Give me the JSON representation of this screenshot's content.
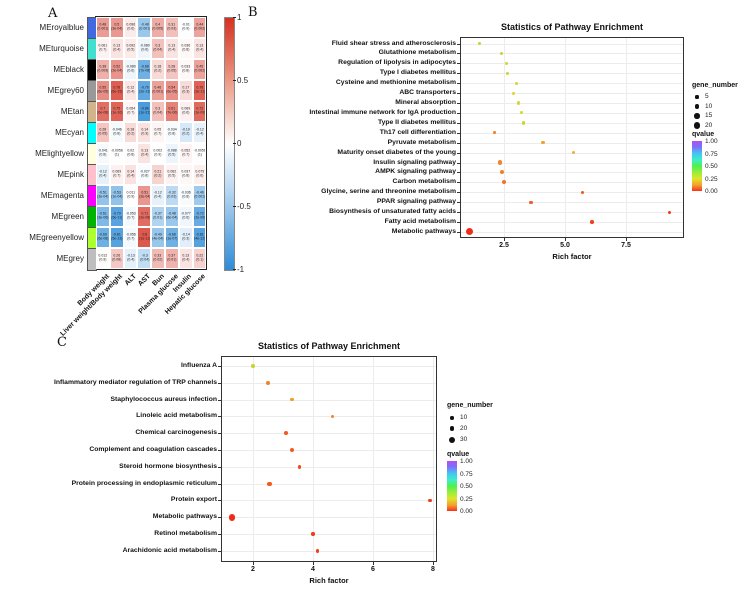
{
  "figure": {
    "panel_a_label": "A",
    "panel_b_label": "B",
    "panel_c_label": "C"
  },
  "chart_data": [
    {
      "id": "A",
      "type": "heatmap",
      "title": "",
      "value_range": [
        -1,
        1
      ],
      "columns": [
        "Body weight",
        "Liver weight/Body weight",
        "ALT",
        "AST",
        "Bun",
        "Plasma glucose",
        "Insulin",
        "Hepatic glucose"
      ],
      "colorbar_ticks": [
        "1",
        "0.5",
        "0",
        "-0.5",
        "-1"
      ],
      "colorbar_colors": {
        "top": "#d63020",
        "middle": "#ffffff",
        "bottom": "#2d8cd8"
      },
      "rows": [
        {
          "module": "MEroyalblue",
          "band_color": "#4169E1",
          "values": [
            "0.48",
            "0.5",
            "0.096",
            "-0.48",
            "0.4",
            "0.31",
            "-0.01",
            "0.44"
          ],
          "pvalues": [
            "(0.001)",
            "(3e-04)",
            "(0.6)",
            "(0.001)",
            "(0.005)",
            "(0.03)",
            "(0.9)",
            "(0.002)"
          ]
        },
        {
          "module": "MEturquoise",
          "band_color": "#40E0D0",
          "values": [
            "0.061",
            "0.13",
            "0.092",
            "-0.080",
            "0.3",
            "0.13",
            "0.036",
            "0.13"
          ],
          "pvalues": [
            "(0.7)",
            "(0.4)",
            "(0.5)",
            "(0.6)",
            "(0.04)",
            "(0.4)",
            "(0.8)",
            "(0.4)"
          ]
        },
        {
          "module": "MEblack",
          "band_color": "#000000",
          "values": [
            "0.38",
            "0.52",
            "-0.080",
            "-0.68",
            "0.18",
            "0.28",
            "0.033",
            "0.45"
          ],
          "pvalues": [
            "(0.009)",
            "(2e-04)",
            "(0.6)",
            "(7e-08)",
            "(0.2)",
            "(0.05)",
            "(0.8)",
            "(0.002)"
          ]
        },
        {
          "module": "MEgrey60",
          "band_color": "#999999",
          "values": [
            "0.55",
            "0.78",
            "0.12",
            "-0.76",
            "0.46",
            "0.54",
            "0.17",
            "0.76"
          ],
          "pvalues": [
            "(6e-05)",
            "(6e-15)",
            "(0.4)",
            "(2e-13)",
            "(0.001)",
            "(6e-05)",
            "(0.3)",
            "(3e-11)"
          ]
        },
        {
          "module": "MEtan",
          "band_color": "#D2B48C",
          "values": [
            "0.7",
            "0.75",
            "0.054",
            "-0.86",
            "0.3",
            "0.61",
            "0.069",
            "0.72"
          ],
          "pvalues": [
            "(6e-08)",
            "(1e-10)",
            "(0.7)",
            "(1e-21)",
            "(0.04)",
            "(7e-06)",
            "(0.6)",
            "(1e-09)"
          ]
        },
        {
          "module": "MEcyan",
          "band_color": "#00FFFF",
          "values": [
            "0.28",
            "-0.046",
            "0.18",
            "0.14",
            "0.05",
            "-0.034",
            "-0.19",
            "-0.12"
          ],
          "pvalues": [
            "(0.05)",
            "(0.8)",
            "(0.2)",
            "(0.3)",
            "(0.7)",
            "(0.8)",
            "(0.2)",
            "(0.4)"
          ]
        },
        {
          "module": "MElightyellow",
          "band_color": "#FFFFE0",
          "values": [
            "-0.041",
            "-0.0056",
            "0.02",
            "0.13",
            "0.002",
            "-0.088",
            "0.052",
            "-0.0056"
          ],
          "pvalues": [
            "(0.8)",
            "(1)",
            "(0.8)",
            "(0.4)",
            "(0.9)",
            "(0.5)",
            "(0.7)",
            "(1)"
          ]
        },
        {
          "module": "MEpink",
          "band_color": "#FFC0CB",
          "values": [
            "-0.12",
            "0.069",
            "0.14",
            "-0.027",
            "0.21",
            "0.062",
            "0.037",
            "0.075"
          ],
          "pvalues": [
            "(0.4)",
            "(0.7)",
            "(0.4)",
            "(0.8)",
            "(0.2)",
            "(0.5)",
            "(0.8)",
            "(0.6)"
          ]
        },
        {
          "module": "MEmagenta",
          "band_color": "#FF00FF",
          "values": [
            "-0.51",
            "-0.53",
            "0.011",
            "0.51",
            "-0.12",
            "-0.32",
            "-0.036",
            "-0.46"
          ],
          "pvalues": [
            "(3e-04)",
            "(1e-04)",
            "(0.9)",
            "(2e-04)",
            "(0.4)",
            "(0.03)",
            "(0.8)",
            "(0.001)"
          ]
        },
        {
          "module": "MEgreen",
          "band_color": "#00B400",
          "values": [
            "-0.61",
            "-0.79",
            "-0.053",
            "0.71",
            "-0.37",
            "-0.48",
            "-0.077",
            "-0.72"
          ],
          "pvalues": [
            "(3e-06)",
            "(6e-11)",
            "(0.7)",
            "(2e-08)",
            "(0.01)",
            "(6e-04)",
            "(0.6)",
            "(2e-09)"
          ]
        },
        {
          "module": "MEgreenyellow",
          "band_color": "#ADFF2F",
          "values": [
            "-0.69",
            "-0.81",
            "-0.056",
            "0.8",
            "-0.49",
            "-0.68",
            "-0.14",
            "-0.81"
          ],
          "pvalues": [
            "(6e-08)",
            "(5e-13)",
            "(0.7)",
            "(1e-11)",
            "(4e-04)",
            "(1e-07)",
            "(0.3)",
            "(4e-12)"
          ]
        },
        {
          "module": "MEgrey",
          "band_color": "#BEBEBE",
          "values": [
            "0.012",
            "0.26",
            "-0.13",
            "-0.3",
            "0.33",
            "0.37",
            "0.13",
            "0.22"
          ],
          "pvalues": [
            "(0.9)",
            "(0.08)",
            "(0.4)",
            "(0.04)",
            "(0.02)",
            "(0.01)",
            "(0.4)",
            "(0.1)"
          ]
        }
      ]
    },
    {
      "id": "B",
      "type": "scatter",
      "title": "Statistics of Pathway Enrichment",
      "xlabel": "Rich factor",
      "xlim": [
        0.7,
        9.9
      ],
      "xticks": [
        2.5,
        5.0,
        7.5
      ],
      "xtick_labels": [
        "2.5",
        "5.0",
        "7.5"
      ],
      "grid": true,
      "legend": {
        "size_title": "gene_number",
        "sizes": [
          5,
          10,
          15,
          20
        ],
        "size_labels": [
          "5",
          "10",
          "15",
          "20"
        ],
        "color_title": "qvalue",
        "color_tick_labels": [
          "1.00",
          "0.75",
          "0.50",
          "0.25",
          "0.00"
        ]
      },
      "points": [
        {
          "pathway": "Fluid shear stress and atherosclerosis",
          "rich_factor": 1.5,
          "gene_number": 5,
          "qvalue_color": "#c3d531"
        },
        {
          "pathway": "Glutathione metabolism",
          "rich_factor": 2.4,
          "gene_number": 5,
          "qvalue_color": "#ccd632"
        },
        {
          "pathway": "Regulation of lipolysis in adipocytes",
          "rich_factor": 2.6,
          "gene_number": 6,
          "qvalue_color": "#d2d631"
        },
        {
          "pathway": "Type I diabetes mellitus",
          "rich_factor": 2.65,
          "gene_number": 6,
          "qvalue_color": "#ccd632"
        },
        {
          "pathway": "Cysteine and methionine metabolism",
          "rich_factor": 3.0,
          "gene_number": 5,
          "qvalue_color": "#d8d434"
        },
        {
          "pathway": "ABC transporters",
          "rich_factor": 2.9,
          "gene_number": 5,
          "qvalue_color": "#dcd337"
        },
        {
          "pathway": "Mineral absorption",
          "rich_factor": 3.1,
          "gene_number": 5,
          "qvalue_color": "#dcd337"
        },
        {
          "pathway": "Intestinal immune network for IgA production",
          "rich_factor": 3.2,
          "gene_number": 5,
          "qvalue_color": "#d8d434"
        },
        {
          "pathway": "Type II diabetes mellitus",
          "rich_factor": 3.3,
          "gene_number": 6,
          "qvalue_color": "#c8d531"
        },
        {
          "pathway": "Th17 cell differentiation",
          "rich_factor": 2.1,
          "gene_number": 5,
          "qvalue_color": "#f07f28"
        },
        {
          "pathway": "Pyruvate metabolism",
          "rich_factor": 4.1,
          "gene_number": 5,
          "qvalue_color": "#eda42d"
        },
        {
          "pathway": "Maturity onset diabetes of the young",
          "rich_factor": 5.35,
          "gene_number": 5,
          "qvalue_color": "#e8b330"
        },
        {
          "pathway": "Insulin signaling pathway",
          "rich_factor": 2.35,
          "gene_number": 9,
          "qvalue_color": "#f0862a"
        },
        {
          "pathway": "AMPK signaling pathway",
          "rich_factor": 2.4,
          "gene_number": 8,
          "qvalue_color": "#f07f28"
        },
        {
          "pathway": "Carbon metabolism",
          "rich_factor": 2.5,
          "gene_number": 8,
          "qvalue_color": "#f0742a"
        },
        {
          "pathway": "Glycine, serine and threonine metabolism",
          "rich_factor": 5.7,
          "gene_number": 5,
          "qvalue_color": "#f2571f"
        },
        {
          "pathway": "PPAR signaling pathway",
          "rich_factor": 3.6,
          "gene_number": 6,
          "qvalue_color": "#f25a20"
        },
        {
          "pathway": "Biosynthesis of unsaturated fatty acids",
          "rich_factor": 9.3,
          "gene_number": 5,
          "qvalue_color": "#f03c1c"
        },
        {
          "pathway": "Fatty acid metabolism",
          "rich_factor": 6.1,
          "gene_number": 6,
          "qvalue_color": "#f23f1d"
        },
        {
          "pathway": "Metabolic pathways",
          "rich_factor": 1.1,
          "gene_number": 25,
          "qvalue_color": "#ee2d17"
        }
      ]
    },
    {
      "id": "C",
      "type": "scatter",
      "title": "Statistics of Pathway Enrichment",
      "xlabel": "Rich factor",
      "xlim": [
        0.9,
        8.1
      ],
      "xticks": [
        2,
        4,
        6,
        8
      ],
      "xtick_labels": [
        "2",
        "4",
        "6",
        "8"
      ],
      "grid": true,
      "legend": {
        "size_title": "gene_number",
        "sizes": [
          10,
          20,
          30
        ],
        "size_labels": [
          "10",
          "20",
          "30"
        ],
        "color_title": "qvalue",
        "color_tick_labels": [
          "1.00",
          "0.75",
          "0.50",
          "0.25",
          "0.00"
        ]
      },
      "points": [
        {
          "pathway": "Influenza A",
          "rich_factor": 2.0,
          "gene_number": 10,
          "qvalue_color": "#c8d531"
        },
        {
          "pathway": "Inflammatory mediator regulation of TRP channels",
          "rich_factor": 2.5,
          "gene_number": 10,
          "qvalue_color": "#f0862a"
        },
        {
          "pathway": "Staphylococcus aureus infection",
          "rich_factor": 3.3,
          "gene_number": 10,
          "qvalue_color": "#f29b2b"
        },
        {
          "pathway": "Linoleic acid metabolism",
          "rich_factor": 4.65,
          "gene_number": 10,
          "qvalue_color": "#f0862a"
        },
        {
          "pathway": "Chemical carcinogenesis",
          "rich_factor": 3.1,
          "gene_number": 12,
          "qvalue_color": "#f25a20"
        },
        {
          "pathway": "Complement and coagulation cascades",
          "rich_factor": 3.3,
          "gene_number": 14,
          "qvalue_color": "#f25a20"
        },
        {
          "pathway": "Steroid hormone biosynthesis",
          "rich_factor": 3.55,
          "gene_number": 12,
          "qvalue_color": "#f24a1e"
        },
        {
          "pathway": "Protein processing in endoplasmic reticulum",
          "rich_factor": 2.55,
          "gene_number": 14,
          "qvalue_color": "#f25a20"
        },
        {
          "pathway": "Protein export",
          "rich_factor": 7.9,
          "gene_number": 8,
          "qvalue_color": "#f03c1c"
        },
        {
          "pathway": "Metabolic pathways",
          "rich_factor": 1.3,
          "gene_number": 40,
          "qvalue_color": "#ee2d17"
        },
        {
          "pathway": "Retinol metabolism",
          "rich_factor": 4.0,
          "gene_number": 10,
          "qvalue_color": "#f03c1c"
        },
        {
          "pathway": "Arachidonic acid metabolism",
          "rich_factor": 4.15,
          "gene_number": 12,
          "qvalue_color": "#f23f1d"
        }
      ]
    }
  ]
}
